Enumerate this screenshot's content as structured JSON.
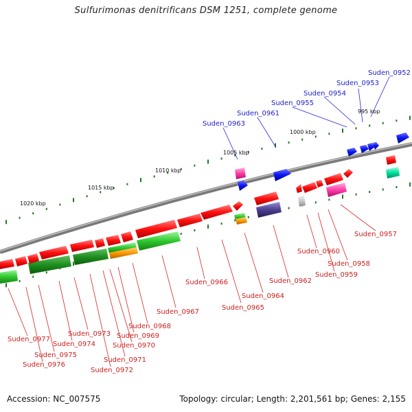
{
  "title": "Sulfurimonas denitrificans DSM 1251, complete genome",
  "footer": {
    "accession": "Accession: NC_007575",
    "topology": "Topology: circular; Length: 2,201,561 bp; Genes: 2,155"
  },
  "ruler_labels": [
    "995 kbp",
    "1000 kbp",
    "1005 kbp",
    "1010 kbp",
    "1015 kbp",
    "1020 kbp"
  ],
  "gene_labels_top": [
    "Suden_0952",
    "Suden_0953",
    "Suden_0954",
    "Suden_0955",
    "Suden_0961",
    "Suden_0963"
  ],
  "gene_labels_bottom": [
    "Suden_0957",
    "Suden_0958",
    "Suden_0959",
    "Suden_0960",
    "Suden_0962",
    "Suden_0964",
    "Suden_0965",
    "Suden_0966",
    "Suden_0967",
    "Suden_0968",
    "Suden_0969",
    "Suden_0970",
    "Suden_0971",
    "Suden_0972",
    "Suden_0973",
    "Suden_0974",
    "Suden_0975",
    "Suden_0976",
    "Suden_0977"
  ],
  "colors": {
    "forward_strand": "#1010e0",
    "reverse_strand": "#e01010",
    "backbone": "#888888",
    "cds_red": "#ff1a1a",
    "cds_green": "#2ec82e",
    "cds_pink": "#ff3fa8",
    "cds_orange": "#ff9900",
    "cds_purple": "#4b3f8f",
    "cds_cyan": "#00e09a",
    "cds_blue": "#0a14f0"
  }
}
